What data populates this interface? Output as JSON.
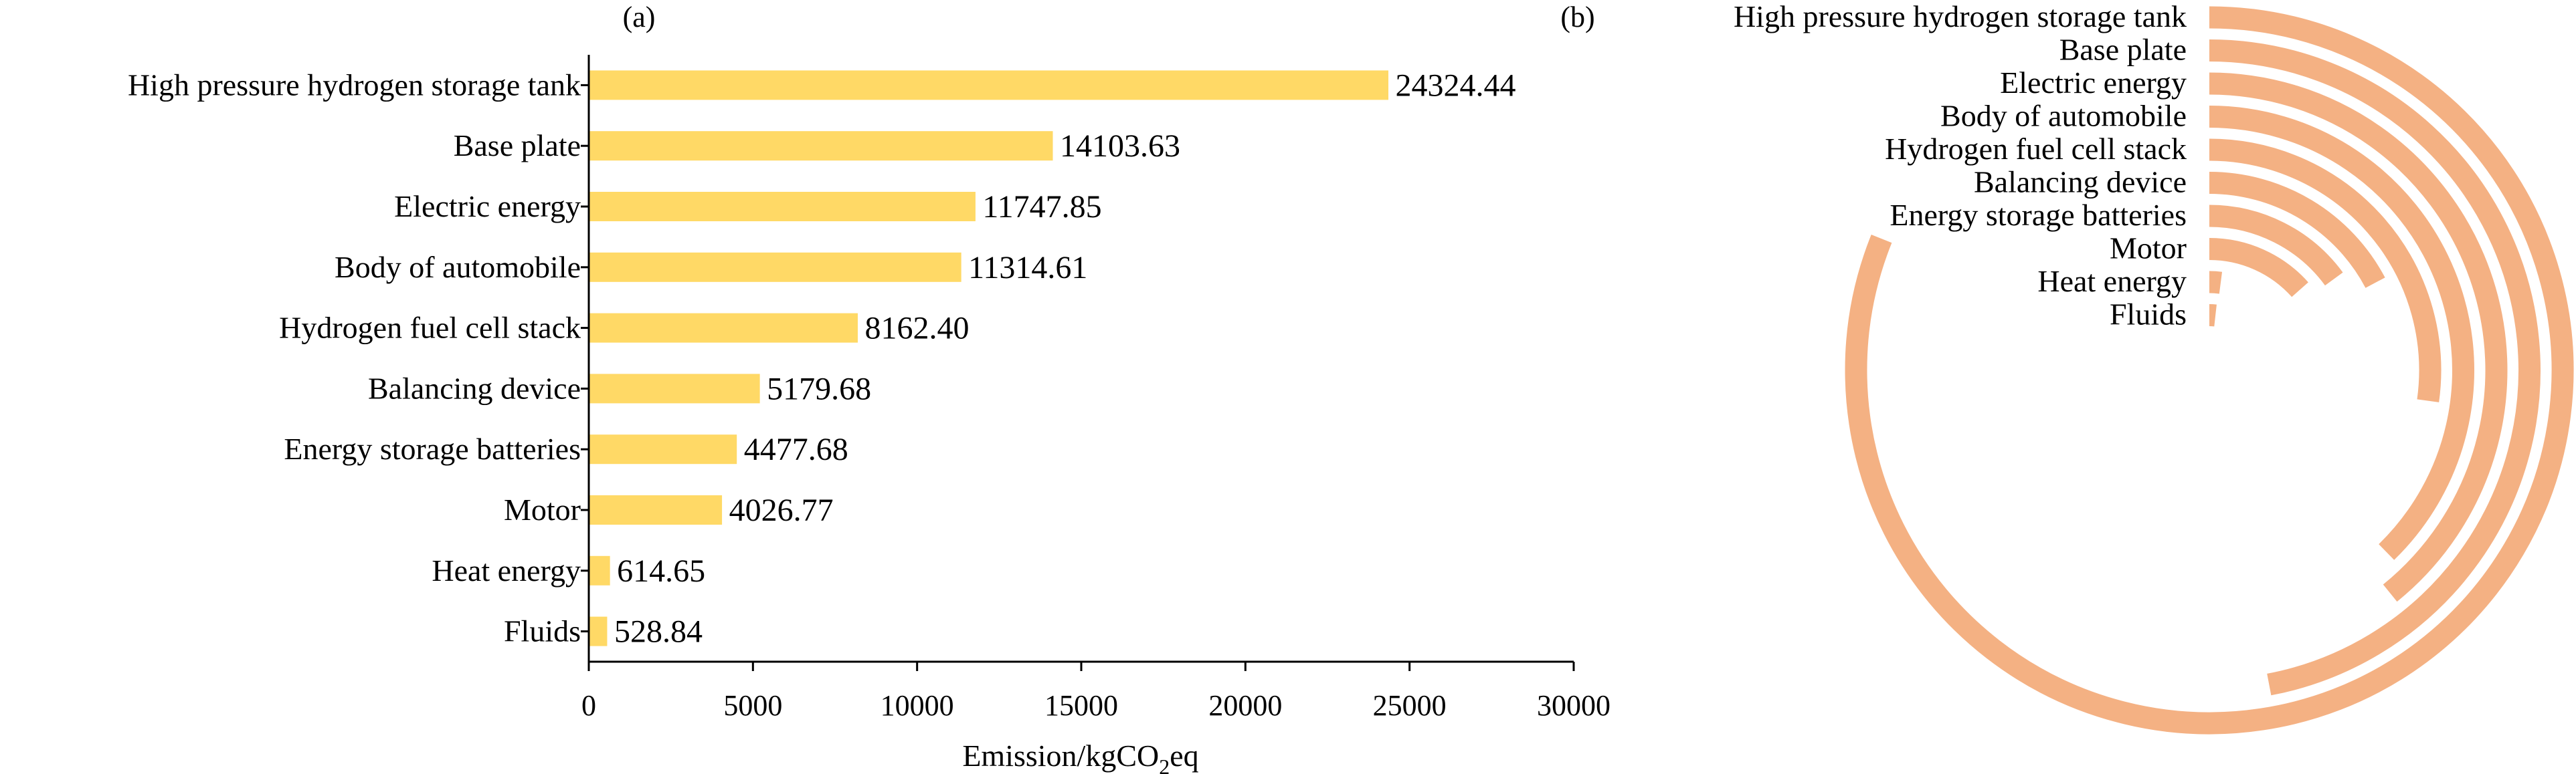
{
  "chart_data": [
    {
      "type": "bar",
      "orientation": "horizontal",
      "panel_label": "(a)",
      "categories": [
        "High pressure hydrogen storage tank",
        "Base plate",
        "Electric energy",
        "Body of automobile",
        "Hydrogen fuel cell stack",
        "Balancing device",
        "Energy storage batteries",
        "Motor",
        "Heat energy",
        "Fluids"
      ],
      "values": [
        24324.44,
        14103.63,
        11747.85,
        11314.61,
        8162.4,
        5179.68,
        4477.68,
        4026.77,
        614.65,
        528.84
      ],
      "value_labels": [
        "24324.44",
        "14103.63",
        "11747.85",
        "11314.61",
        "8162.40",
        "5179.68",
        "4477.68",
        "4026.77",
        "614.65",
        "528.84"
      ],
      "xlabel_prefix": "Emission/kgCO",
      "xlabel_sub": "2",
      "xlabel_suffix": "eq",
      "xlim": [
        0,
        30000
      ],
      "xticks": [
        0,
        5000,
        10000,
        15000,
        20000,
        25000,
        30000
      ],
      "bar_color": "#FFD966",
      "grid": false
    },
    {
      "type": "radial_bar",
      "panel_label": "(b)",
      "categories": [
        "High pressure hydrogen storage tank",
        "Base plate",
        "Electric energy",
        "Body of automobile",
        "Hydrogen fuel cell stack",
        "Balancing device",
        "Energy storage batteries",
        "Motor",
        "Heat energy",
        "Fluids"
      ],
      "values": [
        24324.44,
        14103.63,
        11747.85,
        11314.61,
        8162.4,
        5179.68,
        4477.68,
        4026.77,
        614.65,
        528.84
      ],
      "angular_max": 30000,
      "arc_color": "#F4B183"
    }
  ]
}
